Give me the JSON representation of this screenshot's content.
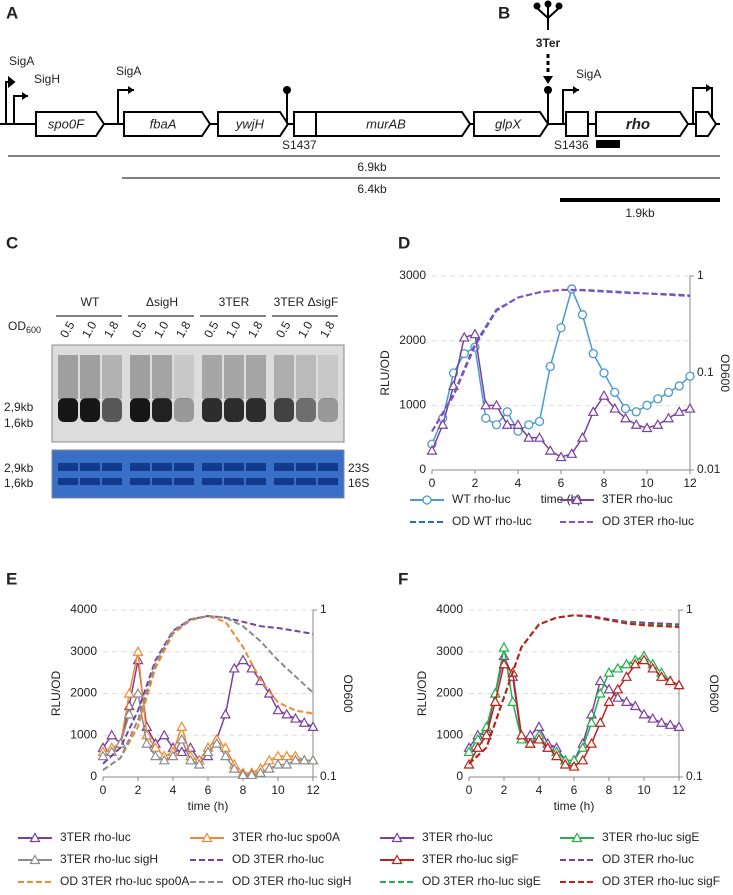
{
  "gene_map": {
    "panel": "A",
    "promoters": [
      "SigA",
      "SigH",
      "SigA",
      "SigA"
    ],
    "genes": [
      "spo0F",
      "fbaA",
      "ywjH",
      "murAB",
      "glpX",
      "rho"
    ],
    "sites": [
      "S1437",
      "S1436"
    ],
    "lengths": [
      "6.9kb",
      "6.4kb",
      "1.9kb"
    ]
  },
  "terminator": {
    "panel": "B",
    "label": "3Ter"
  },
  "gel": {
    "panel": "C",
    "groups": [
      "WT",
      "ΔsigH",
      "3TER",
      "3TER ΔsigF"
    ],
    "od_label": "OD",
    "od_sub": "600",
    "lanes": [
      "0.5",
      "1.0",
      "1.8"
    ],
    "sizes": [
      "2,9kb",
      "1,6kb"
    ],
    "rrna": [
      "23S",
      "16S"
    ]
  },
  "chart_data": [
    {
      "type": "line",
      "panel": "D",
      "y_label": "RLU/OD",
      "y2_label": "OD600",
      "x_label": "time (h)",
      "xlim": [
        0,
        12
      ],
      "xticks": [
        0,
        2,
        4,
        6,
        8,
        10,
        12
      ],
      "ylim": [
        0,
        3000
      ],
      "yticks": [
        0,
        1000,
        2000,
        3000
      ],
      "y2lim": [
        0.01,
        1
      ],
      "y2ticks": [
        0.01,
        0.1,
        1
      ],
      "y2log": true,
      "series": [
        {
          "name": "WT rho-luc",
          "color": "#4a9ad0",
          "marker": "circle",
          "x": [
            0,
            0.5,
            1,
            1.5,
            2,
            2.5,
            3,
            3.5,
            4,
            4.5,
            5,
            5.5,
            6,
            6.5,
            7,
            7.5,
            8,
            8.5,
            9,
            9.5,
            10,
            10.5,
            11,
            11.5,
            12
          ],
          "values": [
            400,
            800,
            1500,
            1800,
            1900,
            800,
            700,
            900,
            600,
            700,
            750,
            1600,
            2200,
            2800,
            2400,
            1800,
            1500,
            1200,
            950,
            900,
            1000,
            1100,
            1200,
            1300,
            1450
          ]
        },
        {
          "name": "3TER  rho-luc",
          "color": "#7b3fa0",
          "marker": "triangle",
          "x": [
            0,
            0.5,
            1,
            1.5,
            2,
            2.5,
            3,
            3.5,
            4,
            4.5,
            5,
            5.5,
            6,
            6.5,
            7,
            7.5,
            8,
            8.5,
            9,
            9.5,
            10,
            10.5,
            11,
            11.5,
            12
          ],
          "values": [
            300,
            700,
            1300,
            2050,
            2100,
            1000,
            1000,
            700,
            700,
            500,
            500,
            300,
            200,
            250,
            500,
            900,
            1150,
            950,
            800,
            700,
            650,
            700,
            800,
            900,
            950
          ]
        },
        {
          "name": "OD WT rho-luc",
          "color": "#1f6fc0",
          "dashed": true,
          "axis": "y2",
          "x": [
            0,
            1,
            2,
            3,
            4,
            5,
            6,
            7,
            8,
            9,
            10,
            11,
            12
          ],
          "values": [
            0.025,
            0.06,
            0.2,
            0.45,
            0.6,
            0.68,
            0.72,
            0.72,
            0.7,
            0.68,
            0.66,
            0.65,
            0.63
          ]
        },
        {
          "name": "OD 3TER rho-luc",
          "color": "#8a4fc0",
          "dashed": true,
          "axis": "y2",
          "x": [
            0,
            1,
            2,
            3,
            4,
            5,
            6,
            7,
            8,
            9,
            10,
            11,
            12
          ],
          "values": [
            0.025,
            0.058,
            0.19,
            0.44,
            0.6,
            0.68,
            0.72,
            0.71,
            0.69,
            0.67,
            0.66,
            0.64,
            0.62
          ]
        }
      ]
    },
    {
      "type": "line",
      "panel": "E",
      "y_label": "RLU/OD",
      "y2_label": "OD600",
      "x_label": "time (h)",
      "xlim": [
        0,
        12
      ],
      "xticks": [
        0,
        2,
        4,
        6,
        8,
        10,
        12
      ],
      "ylim": [
        0,
        4000
      ],
      "yticks": [
        0,
        1000,
        2000,
        3000,
        4000
      ],
      "y2lim": [
        0.1,
        1
      ],
      "y2ticks": [
        0.1,
        1
      ],
      "y2log": true,
      "series": [
        {
          "name": "3TER rho-luc",
          "color": "#7b3fa0",
          "marker": "triangle",
          "x": [
            0,
            0.5,
            1,
            1.5,
            2,
            2.5,
            3,
            3.5,
            4,
            4.5,
            5,
            5.5,
            6,
            6.5,
            7,
            7.5,
            8,
            8.5,
            9,
            9.5,
            10,
            10.5,
            11,
            11.5,
            12
          ],
          "values": [
            700,
            1000,
            800,
            1700,
            2800,
            1200,
            800,
            1000,
            700,
            600,
            700,
            400,
            500,
            900,
            1500,
            2600,
            2800,
            2600,
            2300,
            2000,
            1600,
            1500,
            1400,
            1300,
            1200
          ]
        },
        {
          "name": "3TER rho-luc spo0A",
          "color": "#f08a30",
          "marker": "triangle",
          "x": [
            0,
            0.5,
            1,
            1.5,
            2,
            2.5,
            3,
            3.5,
            4,
            4.5,
            5,
            5.5,
            6,
            6.5,
            7,
            7.5,
            8,
            8.5,
            9,
            9.5,
            10,
            10.5,
            11,
            11.5,
            12
          ],
          "values": [
            600,
            700,
            800,
            2000,
            3000,
            1000,
            700,
            500,
            600,
            1200,
            500,
            400,
            700,
            900,
            700,
            300,
            100,
            100,
            200,
            400,
            500,
            500,
            500,
            400,
            400
          ]
        },
        {
          "name": "3TER rho-luc sigH",
          "color": "#8c8c8c",
          "marker": "triangle",
          "x": [
            0,
            0.5,
            1,
            1.5,
            2,
            2.5,
            3,
            3.5,
            4,
            4.5,
            5,
            5.5,
            6,
            6.5,
            7,
            7.5,
            8,
            8.5,
            9,
            9.5,
            10,
            10.5,
            11,
            11.5,
            12
          ],
          "values": [
            500,
            600,
            800,
            1500,
            2000,
            800,
            500,
            400,
            500,
            900,
            400,
            300,
            600,
            800,
            500,
            200,
            50,
            50,
            100,
            200,
            300,
            300,
            400,
            400,
            400
          ]
        },
        {
          "name": "OD 3TER rho-luc",
          "color": "#7b3fa0",
          "dashed": true,
          "axis": "y2",
          "x": [
            0,
            1,
            2,
            3,
            4,
            5,
            6,
            7,
            8,
            9,
            10,
            11,
            12
          ],
          "values": [
            0.12,
            0.15,
            0.25,
            0.5,
            0.75,
            0.88,
            0.92,
            0.9,
            0.85,
            0.8,
            0.78,
            0.75,
            0.72
          ]
        },
        {
          "name": "OD 3TER rho-luc spo0A",
          "color": "#f08a30",
          "dashed": true,
          "axis": "y2",
          "x": [
            0,
            1,
            2,
            3,
            4,
            5,
            6,
            7,
            8,
            9,
            10,
            11,
            12
          ],
          "values": [
            0.11,
            0.13,
            0.2,
            0.45,
            0.72,
            0.87,
            0.92,
            0.85,
            0.6,
            0.38,
            0.28,
            0.25,
            0.24
          ]
        },
        {
          "name": "OD 3TER rho-luc sigH",
          "color": "#8c8c8c",
          "dashed": true,
          "axis": "y2",
          "x": [
            0,
            1,
            2,
            3,
            4,
            5,
            6,
            7,
            8,
            9,
            10,
            11,
            12
          ],
          "values": [
            0.11,
            0.13,
            0.22,
            0.48,
            0.74,
            0.88,
            0.92,
            0.9,
            0.8,
            0.65,
            0.5,
            0.4,
            0.32
          ]
        }
      ]
    },
    {
      "type": "line",
      "panel": "F",
      "y_label": "RLU/OD",
      "y2_label": "OD600",
      "x_label": "time (h)",
      "xlim": [
        0,
        12
      ],
      "xticks": [
        0,
        2,
        4,
        6,
        8,
        10,
        12
      ],
      "ylim": [
        0,
        4000
      ],
      "yticks": [
        0,
        1000,
        2000,
        3000,
        4000
      ],
      "y2lim": [
        0.1,
        1
      ],
      "y2ticks": [
        0.1,
        1
      ],
      "y2log": true,
      "series": [
        {
          "name": "3TER rho-luc",
          "color": "#7b3fa0",
          "marker": "triangle",
          "x": [
            0,
            0.5,
            1,
            1.5,
            2,
            2.5,
            3,
            3.5,
            4,
            4.5,
            5,
            5.5,
            6,
            6.5,
            7,
            7.5,
            8,
            8.5,
            9,
            9.5,
            10,
            10.5,
            11,
            11.5,
            12
          ],
          "values": [
            700,
            1000,
            1100,
            2000,
            2900,
            2400,
            900,
            1000,
            1200,
            800,
            700,
            400,
            400,
            800,
            1500,
            2300,
            2100,
            1900,
            1800,
            1700,
            1500,
            1400,
            1300,
            1250,
            1200
          ]
        },
        {
          "name": "3TER rho-luc sigE",
          "color": "#22b04a",
          "marker": "triangle",
          "x": [
            0,
            0.5,
            1,
            1.5,
            2,
            2.5,
            3,
            3.5,
            4,
            4.5,
            5,
            5.5,
            6,
            6.5,
            7,
            7.5,
            8,
            8.5,
            9,
            9.5,
            10,
            10.5,
            11,
            11.5,
            12
          ],
          "values": [
            600,
            900,
            1200,
            2000,
            3100,
            1800,
            900,
            800,
            1000,
            700,
            600,
            400,
            400,
            700,
            1300,
            2000,
            2500,
            2600,
            2700,
            2800,
            2900,
            2700,
            2500,
            2300,
            2200
          ]
        },
        {
          "name": "3TER rho-luc sigF",
          "color": "#c0201a",
          "marker": "triangle",
          "x": [
            0,
            0.5,
            1,
            1.5,
            2,
            2.5,
            3,
            3.5,
            4,
            4.5,
            5,
            5.5,
            6,
            6.5,
            7,
            7.5,
            8,
            8.5,
            9,
            9.5,
            10,
            10.5,
            11,
            11.5,
            12
          ],
          "values": [
            300,
            700,
            1000,
            1800,
            2700,
            2500,
            1000,
            800,
            900,
            700,
            500,
            300,
            250,
            400,
            800,
            1300,
            1800,
            2100,
            2400,
            2700,
            2800,
            2600,
            2400,
            2300,
            2200
          ]
        },
        {
          "name": "OD 3TER rho-luc",
          "color": "#7b3fa0",
          "dashed": true,
          "axis": "y2",
          "x": [
            0,
            1,
            2,
            3,
            4,
            5,
            6,
            7,
            8,
            9,
            10,
            11,
            12
          ],
          "values": [
            0.12,
            0.15,
            0.3,
            0.6,
            0.82,
            0.9,
            0.93,
            0.92,
            0.88,
            0.85,
            0.84,
            0.83,
            0.82
          ]
        },
        {
          "name": "OD 3TER rho-luc sigE",
          "color": "#22b04a",
          "dashed": true,
          "axis": "y2",
          "x": [
            0,
            1,
            2,
            3,
            4,
            5,
            6,
            7,
            8,
            9,
            10,
            11,
            12
          ],
          "values": [
            0.12,
            0.15,
            0.3,
            0.6,
            0.82,
            0.9,
            0.93,
            0.91,
            0.87,
            0.84,
            0.82,
            0.81,
            0.8
          ]
        },
        {
          "name": "OD 3TER rho-luc sigF",
          "color": "#c0201a",
          "dashed": true,
          "axis": "y2",
          "x": [
            0,
            1,
            2,
            3,
            4,
            5,
            6,
            7,
            8,
            9,
            10,
            11,
            12
          ],
          "values": [
            0.12,
            0.15,
            0.3,
            0.6,
            0.82,
            0.9,
            0.93,
            0.91,
            0.87,
            0.83,
            0.81,
            0.8,
            0.79
          ]
        }
      ]
    }
  ]
}
